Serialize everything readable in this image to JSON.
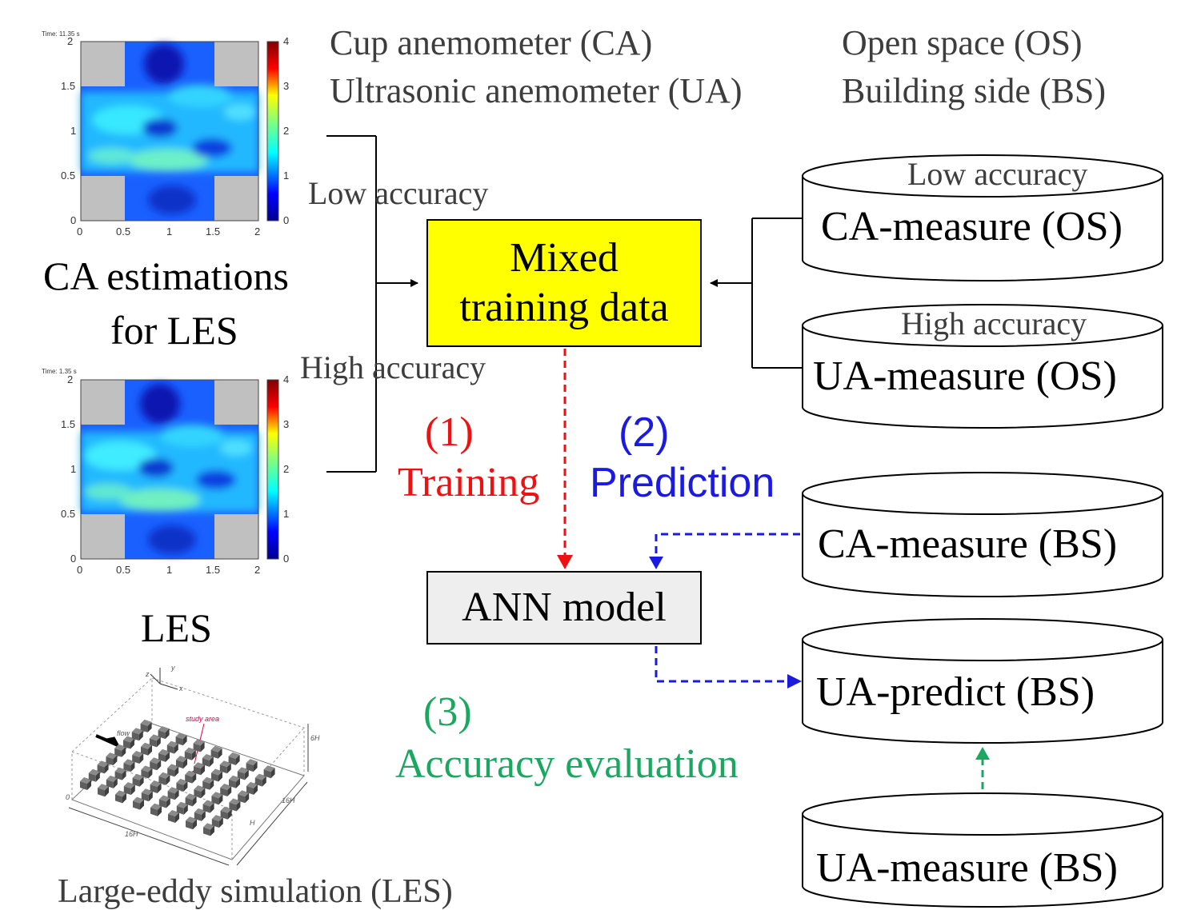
{
  "legend": {
    "ca": "Cup anemometer (CA)",
    "ua": "Ultrasonic anemometer (UA)",
    "os": "Open space (OS)",
    "bs": "Building side (BS)"
  },
  "left_panel": {
    "map_top_title": "Time: 11.35 s",
    "map_bottom_title": "Time: 1.35 s",
    "y_ticks": [
      "2",
      "1.5",
      "1",
      "0.5",
      "0"
    ],
    "x_ticks": [
      "0",
      "0.5",
      "1",
      "1.5",
      "2"
    ],
    "colorbar_ticks": [
      "4",
      "3",
      "2",
      "1",
      "0"
    ],
    "ca_caption_line1": "CA estimations",
    "ca_caption_line2": "for LES",
    "les_label": "LES",
    "les_sketch_study_area": "study area",
    "les_sketch_flow": "flow",
    "les_sketch_dims": [
      "6H",
      "16H",
      "16H",
      "H",
      "0"
    ],
    "les_sketch_axes": [
      "x",
      "y",
      "z"
    ],
    "les_caption": "Large-eddy simulation (LES)"
  },
  "flow": {
    "low_accuracy": "Low accuracy",
    "high_accuracy": "High accuracy"
  },
  "mixed_box": {
    "line1": "Mixed",
    "line2": "training data",
    "color": "#ffff00"
  },
  "ann_box": {
    "label": "ANN model",
    "color": "#eeeeee"
  },
  "steps": {
    "s1_num": "(1)",
    "s1_txt": "Training",
    "s2_num": "(2)",
    "s2_txt": "Prediction",
    "s3_num": "(3)",
    "s3_txt": "Accuracy evaluation",
    "colors": {
      "training": "#ee1111",
      "prediction": "#1a1ae0",
      "evaluation": "#1aa760"
    }
  },
  "cylinders": {
    "c1_top": "Low accuracy",
    "c1_label": "CA-measure (OS)",
    "c2_top": "High accuracy",
    "c2_label": "UA-measure (OS)",
    "c3_label": "CA-measure (BS)",
    "c4_label": "UA-predict (BS)",
    "c5_label": "UA-measure (BS)"
  }
}
